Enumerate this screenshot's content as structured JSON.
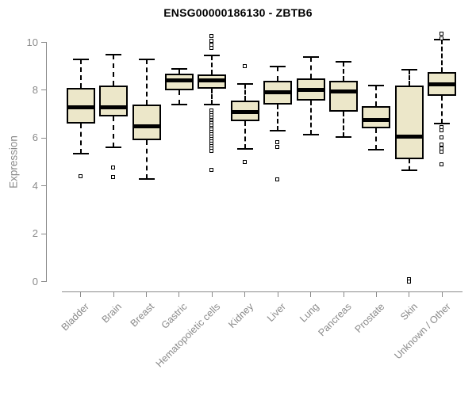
{
  "colors": {
    "box_fill": "#ece7c9",
    "box_border": "#000000",
    "median": "#000000",
    "axis": "#8a8a8a",
    "title": "#000000",
    "background": "#ffffff"
  },
  "chart_data": {
    "type": "boxplot",
    "title": "ENSG00000186130 - ZBTB6",
    "xlabel": "",
    "ylabel": "Expression",
    "ylim": [
      0,
      10
    ],
    "yticks": [
      0,
      2,
      4,
      6,
      8,
      10
    ],
    "grid": false,
    "legend": "none",
    "categories": [
      "Bladder",
      "Brain",
      "Breast",
      "Gastric",
      "Hematopoietic cells",
      "Kidney",
      "Liver",
      "Lung",
      "Pancreas",
      "Prostate",
      "Skin",
      "Unknown / Other"
    ],
    "series": [
      {
        "name": "Bladder",
        "low": 5.35,
        "q1": 6.6,
        "median": 7.3,
        "q3": 8.1,
        "high": 9.3,
        "outliers": [
          4.4
        ]
      },
      {
        "name": "Brain",
        "low": 5.6,
        "q1": 6.9,
        "median": 7.3,
        "q3": 8.2,
        "high": 9.5,
        "outliers": [
          4.75,
          4.35
        ]
      },
      {
        "name": "Breast",
        "low": 4.3,
        "q1": 5.9,
        "median": 6.5,
        "q3": 7.4,
        "high": 9.3,
        "outliers": []
      },
      {
        "name": "Gastric",
        "low": 7.4,
        "q1": 8.0,
        "median": 8.4,
        "q3": 8.7,
        "high": 8.9,
        "outliers": []
      },
      {
        "name": "Hematopoietic cells",
        "low": 7.4,
        "q1": 8.05,
        "median": 8.4,
        "q3": 8.65,
        "high": 9.45,
        "outliers": [
          10.25,
          10.05,
          9.9,
          9.75,
          7.15,
          7.05,
          6.95,
          6.85,
          6.75,
          6.68,
          6.6,
          6.5,
          6.42,
          6.35,
          6.25,
          6.15,
          6.05,
          5.95,
          5.85,
          5.75,
          5.65,
          5.55,
          5.45,
          4.65
        ]
      },
      {
        "name": "Kidney",
        "low": 5.55,
        "q1": 6.7,
        "median": 7.1,
        "q3": 7.55,
        "high": 8.25,
        "outliers": [
          9.0,
          5.0
        ]
      },
      {
        "name": "Liver",
        "low": 6.3,
        "q1": 7.4,
        "median": 7.9,
        "q3": 8.4,
        "high": 9.0,
        "outliers": [
          5.8,
          5.6,
          4.25
        ]
      },
      {
        "name": "Lung",
        "low": 6.15,
        "q1": 7.55,
        "median": 8.0,
        "q3": 8.5,
        "high": 9.4,
        "outliers": []
      },
      {
        "name": "Pancreas",
        "low": 6.05,
        "q1": 7.1,
        "median": 7.95,
        "q3": 8.4,
        "high": 9.2,
        "outliers": []
      },
      {
        "name": "Prostate",
        "low": 5.5,
        "q1": 6.4,
        "median": 6.75,
        "q3": 7.35,
        "high": 8.2,
        "outliers": []
      },
      {
        "name": "Skin",
        "low": 4.65,
        "q1": 5.1,
        "median": 6.05,
        "q3": 8.2,
        "high": 8.85,
        "outliers": [
          0.07,
          0.0
        ]
      },
      {
        "name": "Unknown / Other",
        "low": 6.6,
        "q1": 7.75,
        "median": 8.25,
        "q3": 8.75,
        "high": 10.1,
        "outliers": [
          10.35,
          10.15,
          6.45,
          6.3,
          6.0,
          5.7,
          5.55,
          5.4,
          4.9
        ]
      }
    ]
  }
}
